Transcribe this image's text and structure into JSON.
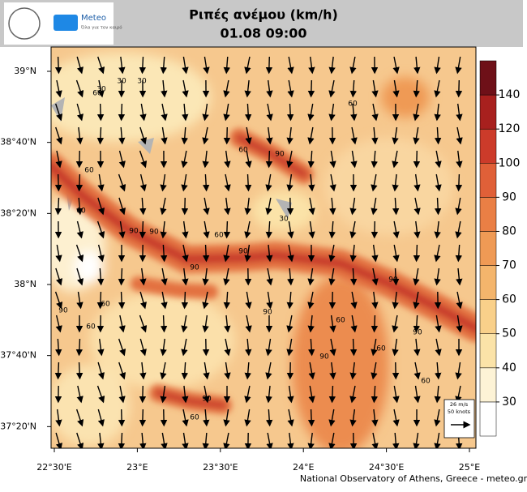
{
  "header": {
    "title": "Ριπές ανέμου (km/h)",
    "subtitle": "01.08 09:00",
    "logo_name": "Meteo",
    "logo_tagline": "Όλα για τον καιρό"
  },
  "map": {
    "lat_ticks": [
      {
        "value": 39,
        "label": "39°N"
      },
      {
        "value": 38.6667,
        "label": "38°40'N"
      },
      {
        "value": 38.3333,
        "label": "38°20'N"
      },
      {
        "value": 38,
        "label": "38°N"
      },
      {
        "value": 37.6667,
        "label": "37°40'N"
      },
      {
        "value": 37.3333,
        "label": "37°20'N"
      }
    ],
    "lon_ticks": [
      {
        "value": 22.5,
        "label": "22°30'E"
      },
      {
        "value": 23,
        "label": "23°E"
      },
      {
        "value": 23.5,
        "label": "23°30'E"
      },
      {
        "value": 24,
        "label": "24°E"
      },
      {
        "value": 24.5,
        "label": "24°30'E"
      },
      {
        "value": 25,
        "label": "25°E"
      }
    ],
    "contour_labels": [
      "30",
      "30",
      "30",
      "60",
      "90",
      "60",
      "90",
      "60",
      "30",
      "60",
      "90",
      "90",
      "90",
      "60",
      "90",
      "90",
      "60",
      "60",
      "90",
      "60",
      "90",
      "90",
      "60",
      "90",
      "60",
      "60",
      "60"
    ],
    "vector_legend": {
      "speed": "26 m/s",
      "knots": "50 knots"
    },
    "credit": "National Observatory of Athens, Greece - meteo.gr"
  },
  "colorbar": {
    "ticks": [
      30,
      40,
      50,
      60,
      70,
      80,
      90,
      100,
      120,
      140
    ],
    "colors": [
      "#ffffff",
      "#fdf3d6",
      "#fbe3a8",
      "#f9d08a",
      "#f4b56c",
      "#ef9a55",
      "#ea7f45",
      "#e06038",
      "#cc3b2a",
      "#a8201e",
      "#6e1018"
    ]
  }
}
